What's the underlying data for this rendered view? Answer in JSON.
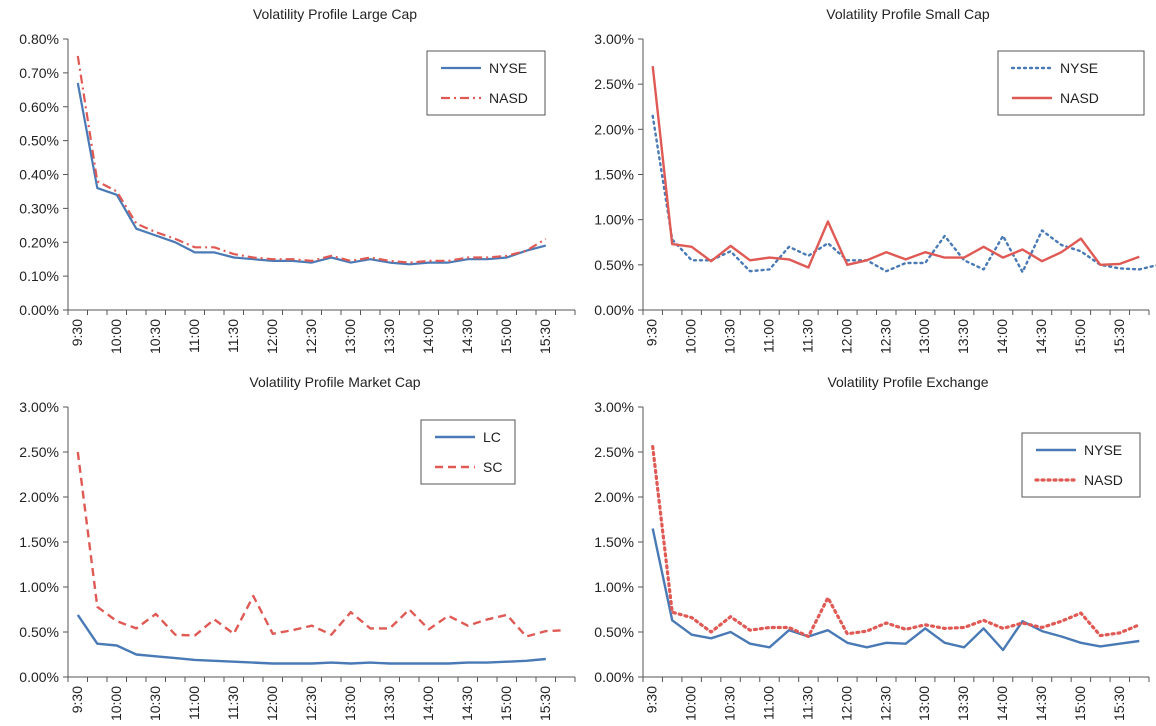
{
  "chart_data": [
    {
      "type": "line",
      "title": "Volatility Profile Large Cap",
      "ylim": [
        0,
        0.8
      ],
      "y_ticks": [
        "0.00%",
        "0.10%",
        "0.20%",
        "0.30%",
        "0.40%",
        "0.50%",
        "0.60%",
        "0.70%",
        "0.80%"
      ],
      "x_tick_labels": [
        "9:30",
        "10:00",
        "10:30",
        "11:00",
        "11:30",
        "12:00",
        "12:30",
        "13:00",
        "13:30",
        "14:00",
        "14:30",
        "15:00",
        "15:30"
      ],
      "grid": false,
      "legend": "top-right",
      "series": [
        {
          "name": "NYSE",
          "color": "#4a7ab5",
          "dash": "solid",
          "width": 2.2,
          "values": [
            0.67,
            0.36,
            0.34,
            0.24,
            0.22,
            0.2,
            0.17,
            0.17,
            0.155,
            0.15,
            0.145,
            0.145,
            0.14,
            0.155,
            0.14,
            0.15,
            0.14,
            0.135,
            0.14,
            0.14,
            0.15,
            0.15,
            0.155,
            0.175,
            0.19
          ]
        },
        {
          "name": "NASD",
          "color": "#e05a55",
          "dash": "dashdot",
          "width": 2.2,
          "values": [
            0.75,
            0.38,
            0.35,
            0.255,
            0.23,
            0.21,
            0.185,
            0.185,
            0.165,
            0.155,
            0.15,
            0.15,
            0.145,
            0.16,
            0.145,
            0.155,
            0.145,
            0.14,
            0.145,
            0.145,
            0.155,
            0.155,
            0.16,
            0.175,
            0.21
          ]
        }
      ]
    },
    {
      "type": "line",
      "title": "Volatility Profile Small Cap",
      "ylim": [
        0,
        3.0
      ],
      "y_ticks": [
        "0.00%",
        "0.50%",
        "1.00%",
        "1.50%",
        "2.00%",
        "2.50%",
        "3.00%"
      ],
      "x_tick_labels": [
        "9:30",
        "10:00",
        "10:30",
        "11:00",
        "11:30",
        "12:00",
        "12:30",
        "13:00",
        "13:30",
        "14:00",
        "14:30",
        "15:00",
        "15:30"
      ],
      "grid": false,
      "legend": "top-right",
      "series": [
        {
          "name": "NYSE",
          "color": "#4a7ab5",
          "dash": "dotted",
          "width": 2.4,
          "values": [
            2.15,
            0.78,
            0.55,
            0.55,
            0.65,
            0.43,
            0.45,
            0.7,
            0.6,
            0.74,
            0.55,
            0.55,
            0.43,
            0.52,
            0.52,
            0.82,
            0.55,
            0.45,
            0.82,
            0.42,
            0.88,
            0.72,
            0.65,
            0.5,
            0.46,
            0.45,
            0.5
          ]
        },
        {
          "name": "NASD",
          "color": "#e05a55",
          "dash": "solid",
          "width": 2.4,
          "values": [
            2.7,
            0.73,
            0.7,
            0.54,
            0.71,
            0.55,
            0.58,
            0.56,
            0.47,
            0.98,
            0.5,
            0.55,
            0.64,
            0.56,
            0.64,
            0.58,
            0.58,
            0.7,
            0.58,
            0.67,
            0.54,
            0.64,
            0.79,
            0.5,
            0.51,
            0.59
          ]
        }
      ]
    },
    {
      "type": "line",
      "title": "Volatility Profile Market Cap",
      "ylim": [
        0,
        3.0
      ],
      "y_ticks": [
        "0.00%",
        "0.50%",
        "1.00%",
        "1.50%",
        "2.00%",
        "2.50%",
        "3.00%"
      ],
      "x_tick_labels": [
        "9:30",
        "10:00",
        "10:30",
        "11:00",
        "11:30",
        "12:00",
        "12:30",
        "13:00",
        "13:30",
        "14:00",
        "14:30",
        "15:00",
        "15:30"
      ],
      "grid": false,
      "legend": "top-right",
      "series": [
        {
          "name": "LC",
          "color": "#4a7ab5",
          "dash": "solid",
          "width": 2.4,
          "values": [
            0.69,
            0.37,
            0.35,
            0.25,
            0.23,
            0.21,
            0.19,
            0.18,
            0.17,
            0.16,
            0.15,
            0.15,
            0.15,
            0.16,
            0.15,
            0.16,
            0.15,
            0.15,
            0.15,
            0.15,
            0.16,
            0.16,
            0.17,
            0.18,
            0.2
          ]
        },
        {
          "name": "SC",
          "color": "#e05a55",
          "dash": "dashed",
          "width": 2.4,
          "values": [
            2.5,
            0.78,
            0.62,
            0.54,
            0.7,
            0.47,
            0.46,
            0.64,
            0.48,
            0.9,
            0.48,
            0.52,
            0.57,
            0.47,
            0.72,
            0.54,
            0.54,
            0.75,
            0.53,
            0.68,
            0.57,
            0.64,
            0.69,
            0.45,
            0.51,
            0.52
          ]
        }
      ]
    },
    {
      "type": "line",
      "title": "Volatility Profile Exchange",
      "ylim": [
        0,
        3.0
      ],
      "y_ticks": [
        "0.00%",
        "0.50%",
        "1.00%",
        "1.50%",
        "2.00%",
        "2.50%",
        "3.00%"
      ],
      "x_tick_labels": [
        "9:30",
        "10:00",
        "10:30",
        "11:00",
        "11:30",
        "12:00",
        "12:30",
        "13:00",
        "13:30",
        "14:00",
        "14:30",
        "15:00",
        "15:30"
      ],
      "grid": false,
      "legend": "top-right",
      "series": [
        {
          "name": "NYSE",
          "color": "#4a7ab5",
          "dash": "solid",
          "width": 2.4,
          "values": [
            1.65,
            0.63,
            0.47,
            0.43,
            0.5,
            0.37,
            0.33,
            0.52,
            0.45,
            0.52,
            0.38,
            0.33,
            0.38,
            0.37,
            0.54,
            0.38,
            0.33,
            0.54,
            0.3,
            0.62,
            0.51,
            0.45,
            0.38,
            0.34,
            0.37,
            0.4
          ]
        },
        {
          "name": "NASD",
          "color": "#e05a55",
          "dash": "dotted",
          "width": 3.2,
          "values": [
            2.56,
            0.72,
            0.66,
            0.5,
            0.67,
            0.52,
            0.55,
            0.55,
            0.45,
            0.88,
            0.48,
            0.51,
            0.6,
            0.53,
            0.58,
            0.54,
            0.55,
            0.63,
            0.54,
            0.6,
            0.55,
            0.62,
            0.71,
            0.46,
            0.49,
            0.58
          ]
        }
      ]
    }
  ]
}
